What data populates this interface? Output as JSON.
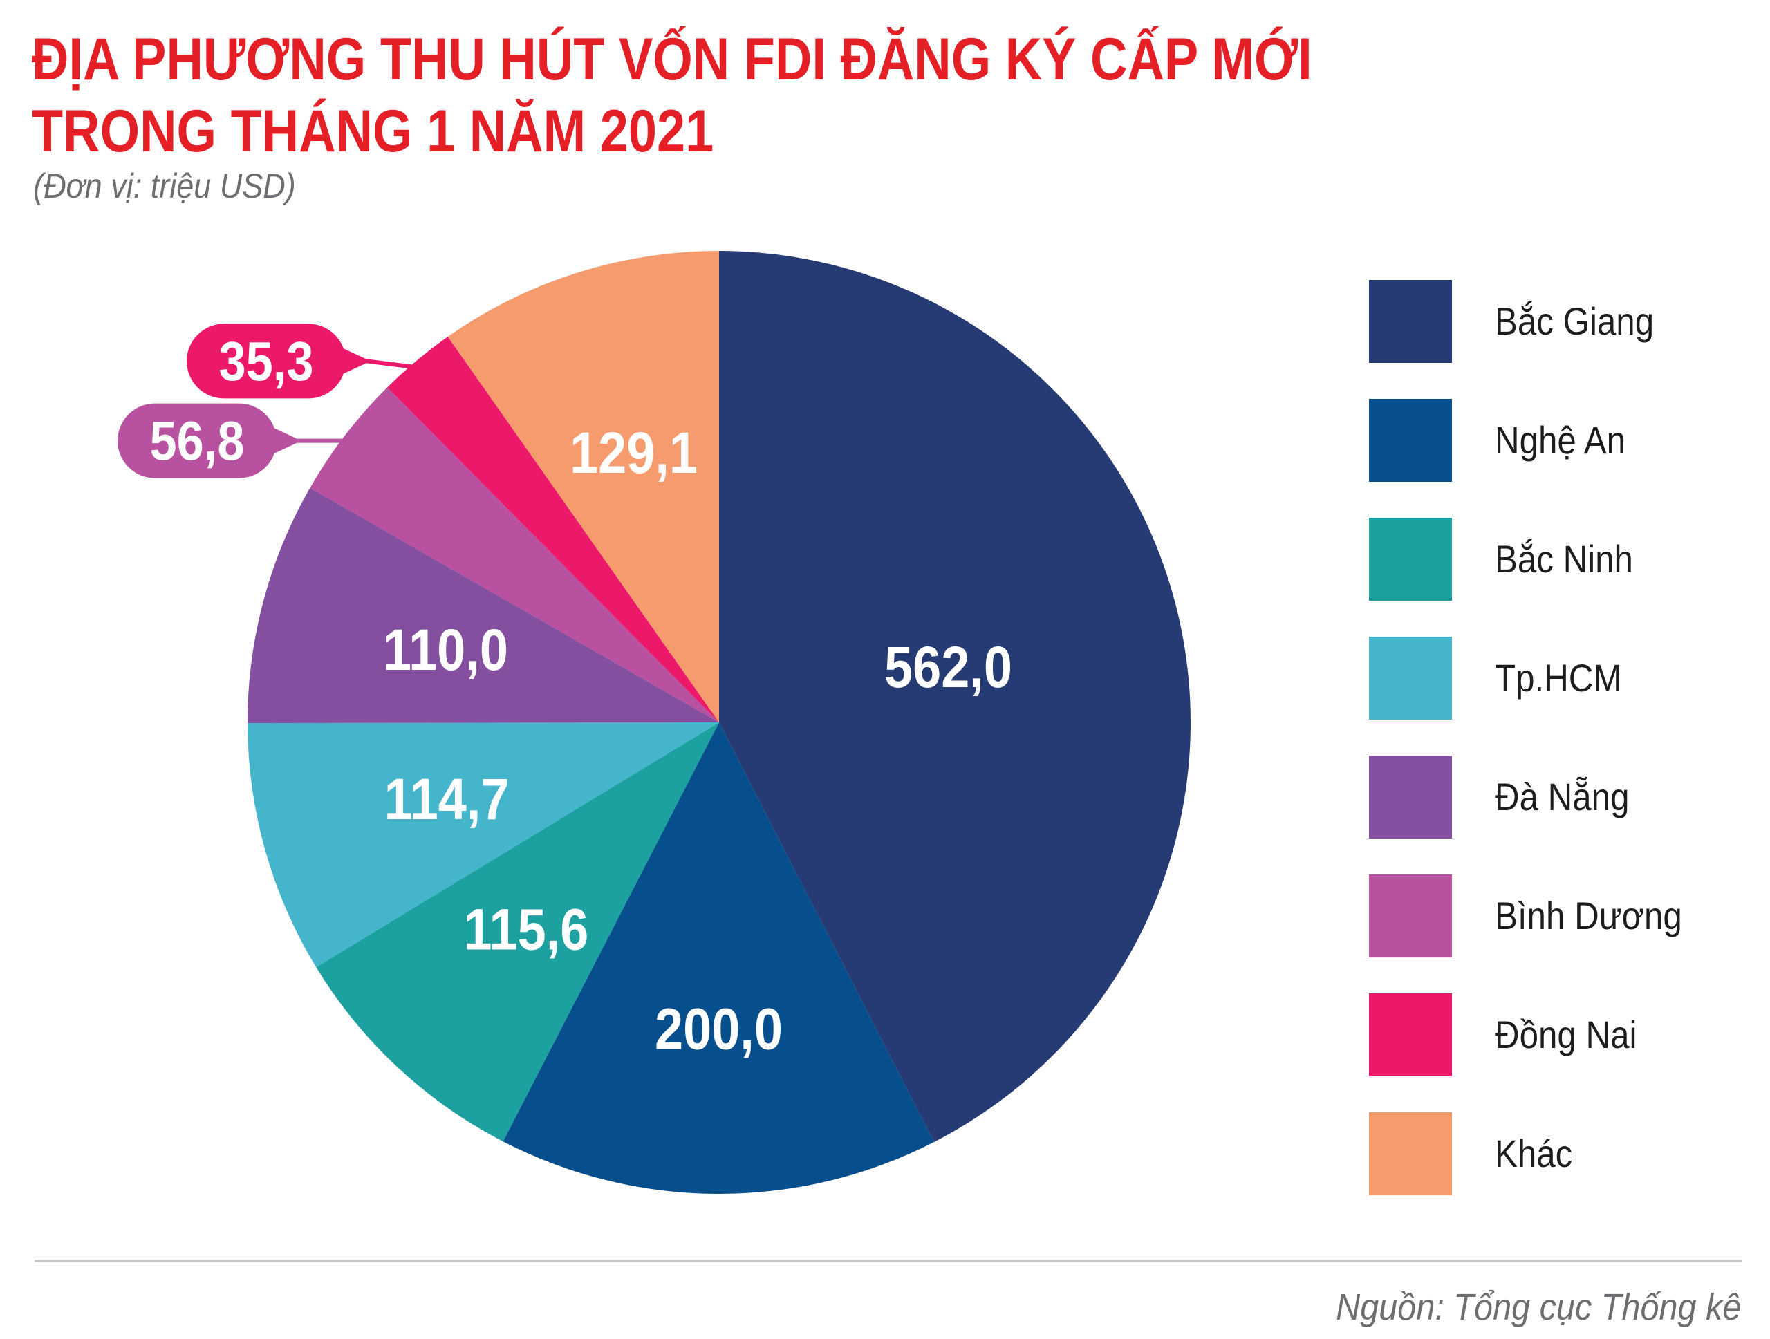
{
  "header": {
    "title_line1": "ĐỊA PHƯƠNG THU HÚT VỐN FDI ĐĂNG KÝ CẤP MỚI",
    "title_line2": "TRONG THÁNG 1 NĂM 2021",
    "unit": "(Đơn vị: triệu USD)"
  },
  "footer": {
    "source": "Nguồn: Tổng cục Thống kê"
  },
  "chart_data": {
    "type": "pie",
    "title": "ĐỊA PHƯƠNG THU HÚT VỐN FDI ĐĂNG KÝ CẤP MỚI TRONG THÁNG 1 NĂM 2021",
    "unit": "(Đơn vị: triệu USD)",
    "legend_position": "right",
    "slices": [
      {
        "name": "Bắc Giang",
        "value": 562.0,
        "label": "562,0",
        "color": "#263a73"
      },
      {
        "name": "Nghệ An",
        "value": 200.0,
        "label": "200,0",
        "color": "#064f8c"
      },
      {
        "name": "Bắc Ninh",
        "value": 115.6,
        "label": "115,6",
        "color": "#1ca1a0"
      },
      {
        "name": "Tp.HCM",
        "value": 114.7,
        "label": "114,7",
        "color": "#45b5cc"
      },
      {
        "name": "Đà Nẵng",
        "value": 110.0,
        "label": "110,0",
        "color": "#854f9f"
      },
      {
        "name": "Bình Dương",
        "value": 56.8,
        "label": "56,8",
        "color": "#b851a0"
      },
      {
        "name": "Đồng Nai",
        "value": 35.3,
        "label": "35,3",
        "color": "#ec1869"
      },
      {
        "name": "Khác",
        "value": 129.1,
        "label": "129,1",
        "color": "#f59b6d"
      }
    ]
  }
}
